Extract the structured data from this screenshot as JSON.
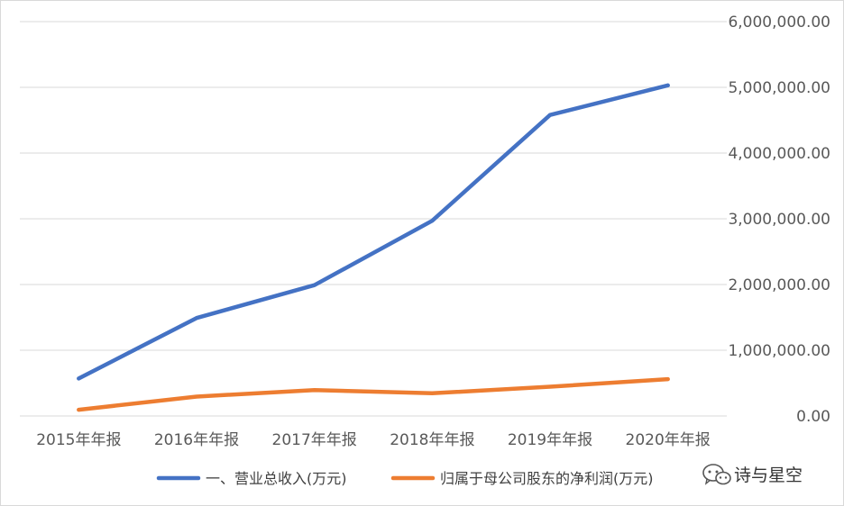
{
  "chart_data": {
    "type": "line",
    "categories": [
      "2015年年报",
      "2016年年报",
      "2017年年报",
      "2018年年报",
      "2019年年报",
      "2020年年报"
    ],
    "series": [
      {
        "name": "一、营业总收入(万元)",
        "color": "#4472c4",
        "values": [
          570000,
          1490000,
          1990000,
          2970000,
          4580000,
          5030000
        ]
      },
      {
        "name": "归属于母公司股东的净利润(万元)",
        "color": "#ed7d31",
        "values": [
          95000,
          295000,
          395000,
          345000,
          445000,
          560000
        ]
      }
    ],
    "ylim": [
      0,
      6000000
    ],
    "yticks": [
      0,
      1000000,
      2000000,
      3000000,
      4000000,
      5000000,
      6000000
    ],
    "ytick_labels": [
      "0.00",
      "1,000,000.00",
      "2,000,000.00",
      "3,000,000.00",
      "4,000,000.00",
      "5,000,000.00",
      "6,000,000.00"
    ],
    "y_axis_side": "right",
    "grid": true,
    "legend_position": "bottom"
  },
  "watermark": {
    "text": "诗与星空",
    "icon": "wechat-icon"
  }
}
